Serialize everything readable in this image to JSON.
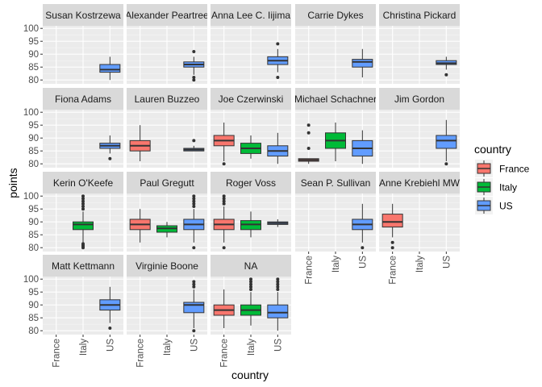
{
  "chart_data": {
    "type": "boxplot-facet",
    "xlabel": "country",
    "ylabel": "points",
    "x_categories": [
      "France",
      "Italy",
      "US"
    ],
    "y_ticks": [
      80,
      85,
      90,
      95,
      100
    ],
    "ylim": [
      78.5,
      101
    ],
    "legend": {
      "title": "country",
      "position": "right",
      "entries": [
        {
          "name": "France",
          "color": "#F8766D"
        },
        {
          "name": "Italy",
          "color": "#00BA38"
        },
        {
          "name": "US",
          "color": "#619CFF"
        }
      ]
    },
    "panels": [
      {
        "title": "Susan Kostrzewa",
        "boxes": [
          {
            "country": "US",
            "lw": 80,
            "q1": 83,
            "median": 84,
            "q3": 86,
            "uw": 89,
            "outliers": []
          }
        ]
      },
      {
        "title": "Alexander Peartree",
        "boxes": [
          {
            "country": "US",
            "lw": 82,
            "q1": 85,
            "median": 86,
            "q3": 87,
            "uw": 89,
            "outliers": [
              80,
              81,
              91
            ]
          }
        ]
      },
      {
        "title": "Anna Lee C. Iijima",
        "boxes": [
          {
            "country": "US",
            "lw": 83,
            "q1": 86,
            "median": 87.5,
            "q3": 89,
            "uw": 92,
            "outliers": [
              81,
              94
            ]
          }
        ]
      },
      {
        "title": "Carrie Dykes",
        "boxes": [
          {
            "country": "US",
            "lw": 81,
            "q1": 85,
            "median": 87,
            "q3": 88,
            "uw": 92,
            "outliers": []
          }
        ]
      },
      {
        "title": "Christina Pickard",
        "boxes": [
          {
            "country": "US",
            "lw": 84,
            "q1": 86,
            "median": 86.5,
            "q3": 87.5,
            "uw": 89,
            "outliers": [
              82
            ]
          }
        ]
      },
      {
        "title": "Fiona Adams",
        "boxes": [
          {
            "country": "US",
            "lw": 84,
            "q1": 86,
            "median": 87,
            "q3": 88,
            "uw": 91,
            "outliers": [
              82
            ]
          }
        ]
      },
      {
        "title": "Lauren Buzzeo",
        "boxes": [
          {
            "country": "France",
            "lw": 81,
            "q1": 85,
            "median": 87,
            "q3": 89,
            "uw": 95,
            "outliers": []
          },
          {
            "country": "US",
            "lw": 85,
            "q1": 85,
            "median": 85.5,
            "q3": 86,
            "uw": 87,
            "outliers": [
              89
            ]
          }
        ]
      },
      {
        "title": "Joe Czerwinski",
        "boxes": [
          {
            "country": "France",
            "lw": 81,
            "q1": 87,
            "median": 89,
            "q3": 91,
            "uw": 96,
            "outliers": [
              80
            ]
          },
          {
            "country": "Italy",
            "lw": 82,
            "q1": 84,
            "median": 86,
            "q3": 88,
            "uw": 91,
            "outliers": []
          },
          {
            "country": "US",
            "lw": 80,
            "q1": 83,
            "median": 85,
            "q3": 87,
            "uw": 92,
            "outliers": []
          }
        ]
      },
      {
        "title": "Michael Schachner",
        "boxes": [
          {
            "country": "France",
            "lw": 80,
            "q1": 81,
            "median": 81.5,
            "q3": 82,
            "uw": 82,
            "outliers": [
              86,
              92,
              95
            ]
          },
          {
            "country": "Italy",
            "lw": 81,
            "q1": 86,
            "median": 89,
            "q3": 92,
            "uw": 96,
            "outliers": []
          },
          {
            "country": "US",
            "lw": 80,
            "q1": 83,
            "median": 86,
            "q3": 89,
            "uw": 93,
            "outliers": []
          }
        ]
      },
      {
        "title": "Jim Gordon",
        "boxes": [
          {
            "country": "US",
            "lw": 81,
            "q1": 86,
            "median": 89,
            "q3": 91,
            "uw": 97,
            "outliers": [
              80
            ]
          }
        ]
      },
      {
        "title": "Kerin O'Keefe",
        "boxes": [
          {
            "country": "Italy",
            "lw": 82,
            "q1": 87,
            "median": 89,
            "q3": 90,
            "uw": 94,
            "outliers": [
              80,
              80.5,
              81,
              81.5,
              95,
              96,
              97,
              98,
              99,
              100
            ]
          }
        ]
      },
      {
        "title": "Paul Gregutt",
        "boxes": [
          {
            "country": "France",
            "lw": 82,
            "q1": 87,
            "median": 89,
            "q3": 91,
            "uw": 95,
            "outliers": []
          },
          {
            "country": "Italy",
            "lw": 84,
            "q1": 86,
            "median": 87.5,
            "q3": 88.5,
            "uw": 90,
            "outliers": []
          },
          {
            "country": "US",
            "lw": 82,
            "q1": 87,
            "median": 89,
            "q3": 91,
            "uw": 95,
            "outliers": [
              80,
              96,
              97,
              98,
              99,
              100
            ]
          }
        ]
      },
      {
        "title": "Roger Voss",
        "boxes": [
          {
            "country": "France",
            "lw": 82,
            "q1": 87,
            "median": 89,
            "q3": 91,
            "uw": 96,
            "outliers": [
              80,
              97,
              98,
              99,
              100
            ]
          },
          {
            "country": "Italy",
            "lw": 84,
            "q1": 87,
            "median": 89,
            "q3": 90.5,
            "uw": 94,
            "outliers": []
          },
          {
            "country": "US",
            "lw": 88,
            "q1": 89,
            "median": 89.5,
            "q3": 90,
            "uw": 91,
            "outliers": []
          }
        ]
      },
      {
        "title": "Sean P. Sullivan",
        "boxes": [
          {
            "country": "US",
            "lw": 82,
            "q1": 87,
            "median": 89,
            "q3": 91,
            "uw": 97,
            "outliers": [
              80
            ]
          }
        ]
      },
      {
        "title": "Anne Krebiehl MW",
        "boxes": [
          {
            "country": "France",
            "lw": 84,
            "q1": 88,
            "median": 90,
            "q3": 93,
            "uw": 97,
            "outliers": [
              80,
              82
            ]
          }
        ]
      },
      {
        "title": "Matt Kettmann",
        "boxes": [
          {
            "country": "US",
            "lw": 83,
            "q1": 88,
            "median": 90,
            "q3": 92,
            "uw": 97,
            "outliers": [
              81
            ]
          }
        ]
      },
      {
        "title": "Virginie Boone",
        "boxes": [
          {
            "country": "US",
            "lw": 81,
            "q1": 87,
            "median": 90,
            "q3": 91,
            "uw": 96,
            "outliers": [
              80,
              97,
              98,
              99
            ]
          }
        ]
      },
      {
        "title": "NA",
        "boxes": [
          {
            "country": "France",
            "lw": 81,
            "q1": 86,
            "median": 88,
            "q3": 90,
            "uw": 96,
            "outliers": []
          },
          {
            "country": "Italy",
            "lw": 82,
            "q1": 86,
            "median": 88,
            "q3": 90,
            "uw": 95,
            "outliers": [
              96,
              97,
              98,
              99,
              100
            ]
          },
          {
            "country": "US",
            "lw": 80,
            "q1": 85,
            "median": 87,
            "q3": 90,
            "uw": 95,
            "outliers": [
              96,
              97,
              98,
              99,
              100
            ]
          }
        ]
      }
    ]
  }
}
